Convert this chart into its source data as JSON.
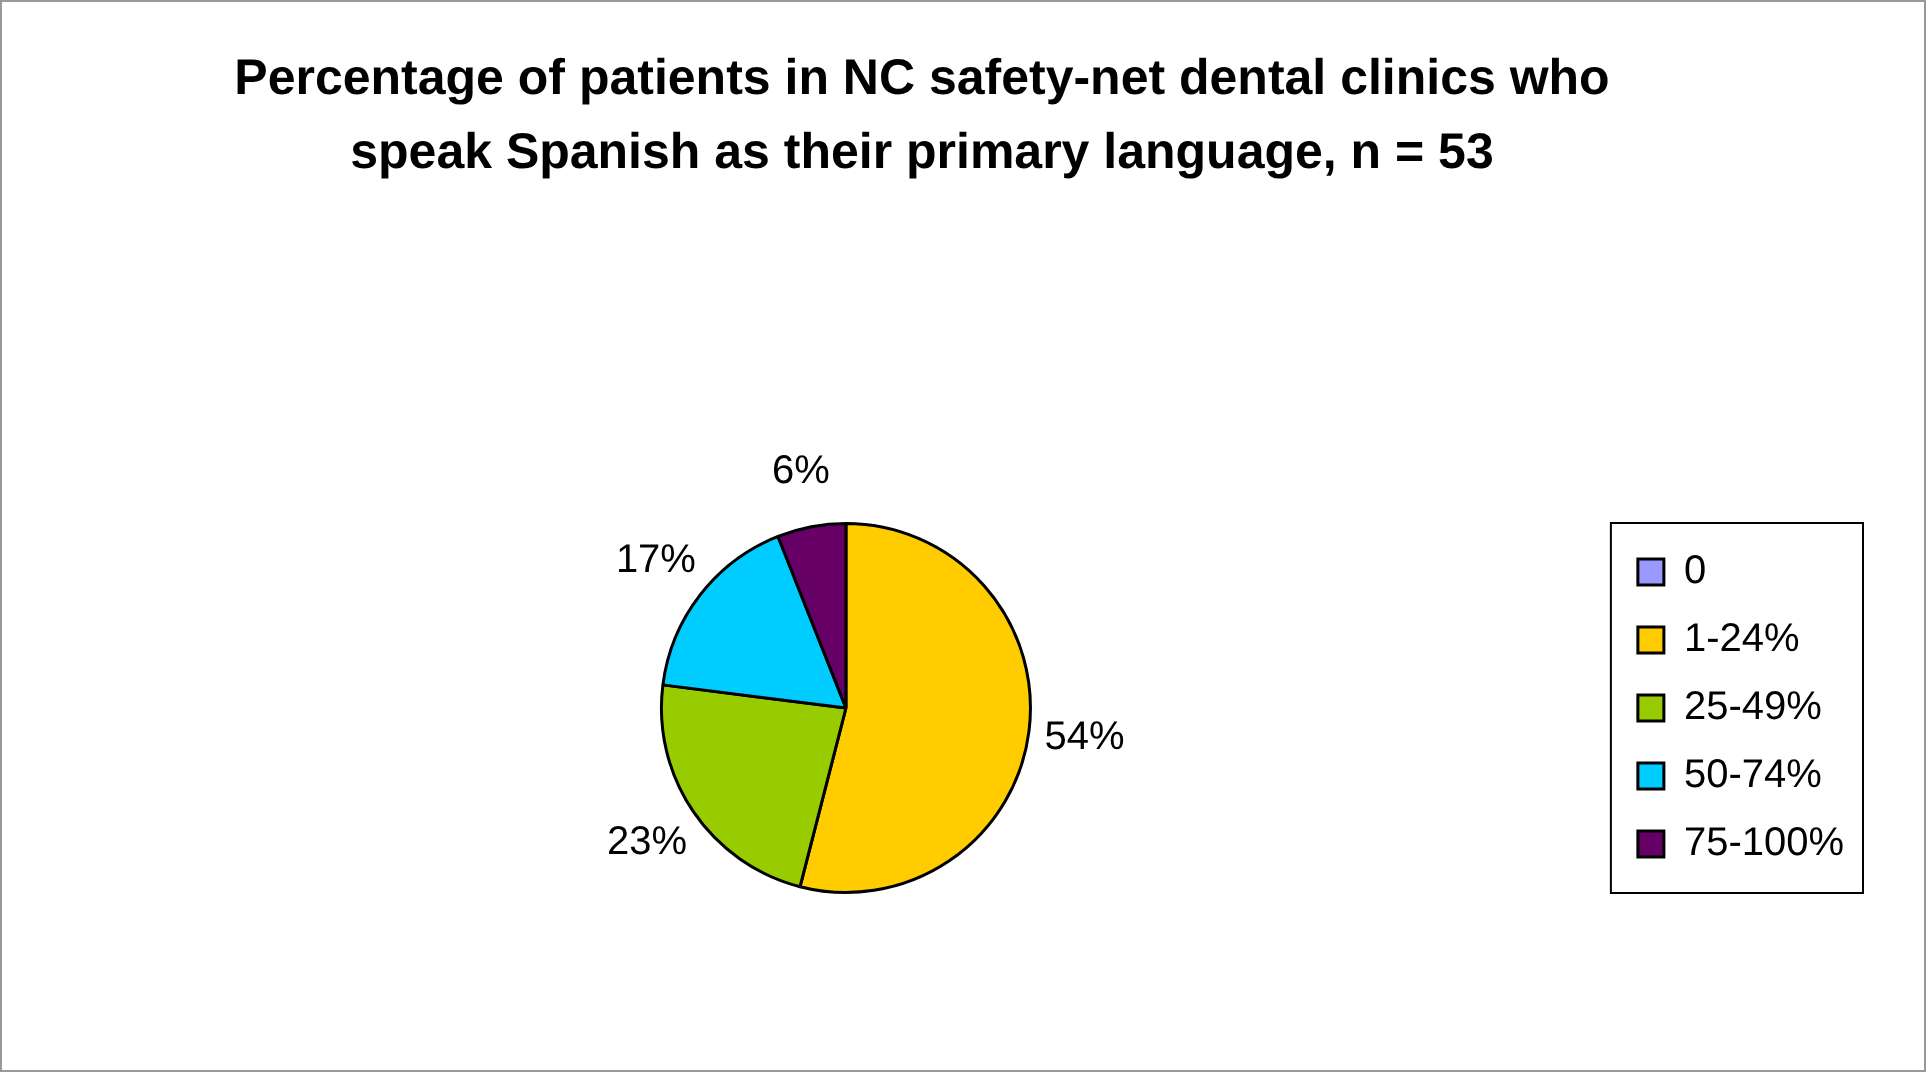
{
  "chart_data": {
    "type": "pie",
    "title": "Percentage of patients in NC safety-net dental clinics who speak Spanish as their primary language, n = 53",
    "categories": [
      "0",
      "1-24%",
      "25-49%",
      "50-74%",
      "75-100%"
    ],
    "values": [
      0,
      54,
      23,
      17,
      6
    ],
    "value_labels": [
      null,
      "54%",
      "23%",
      "17%",
      "6%"
    ],
    "colors": [
      "#9999ff",
      "#ffcc00",
      "#99cc00",
      "#00ccff",
      "#660066"
    ],
    "legend": "right"
  }
}
